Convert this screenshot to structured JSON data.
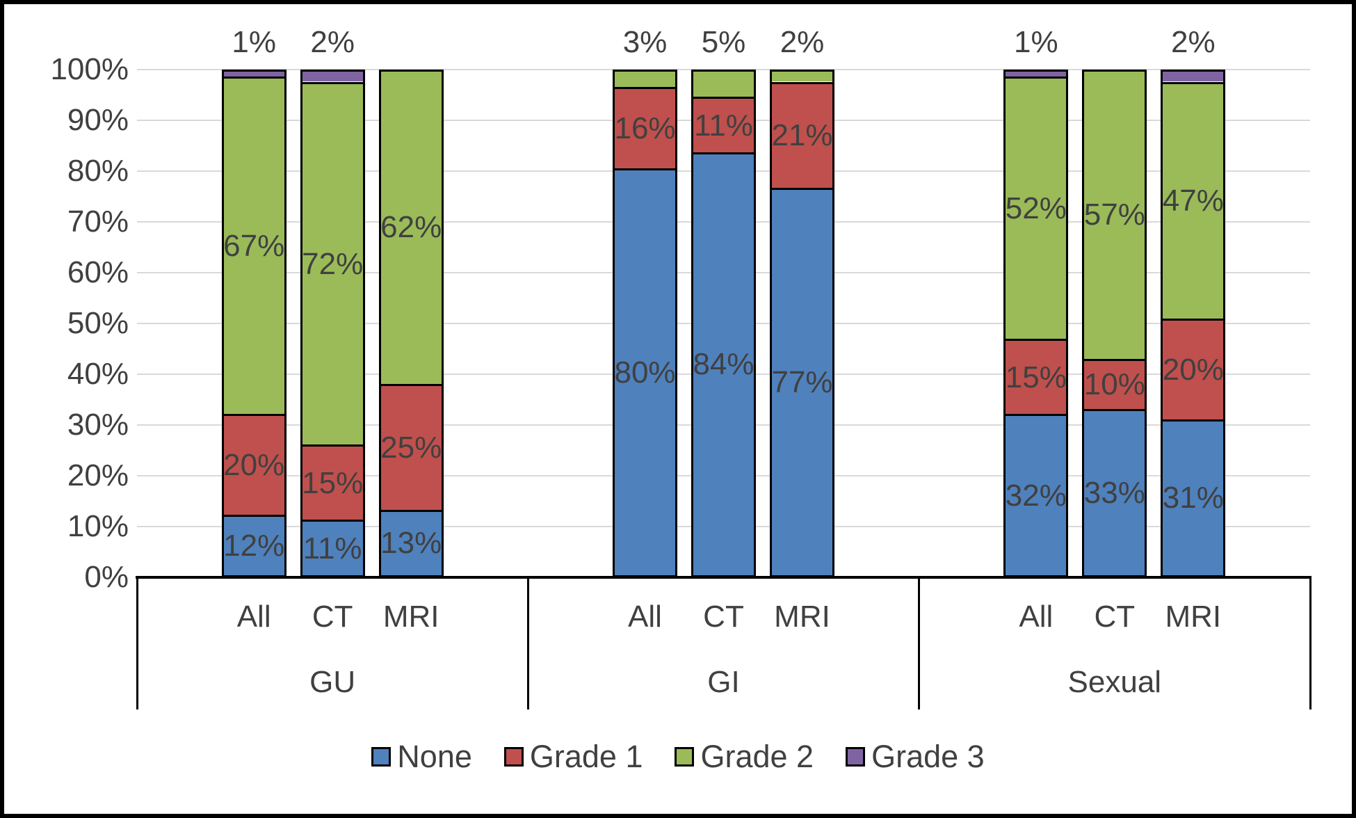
{
  "colors": {
    "series": [
      "#4F81BD",
      "#C0504D",
      "#9BBB59",
      "#8064A2"
    ],
    "text": "#404040",
    "gridline": "#D9D9D9",
    "axis_line": "#000000",
    "background": "#FFFFFF",
    "outer_border": "#000000"
  },
  "legend": {
    "items": [
      {
        "label": "None"
      },
      {
        "label": "Grade 1"
      },
      {
        "label": "Grade 2"
      },
      {
        "label": "Grade 3"
      }
    ]
  },
  "y_axis": {
    "min": 0,
    "max": 100,
    "step": 10,
    "tick_labels": [
      "0%",
      "10%",
      "20%",
      "30%",
      "40%",
      "50%",
      "60%",
      "70%",
      "80%",
      "90%",
      "100%"
    ]
  },
  "chart_data": {
    "type": "bar",
    "stacked": true,
    "unit": "percent",
    "grid": true,
    "legend_position": "bottom",
    "series_names": [
      "None",
      "Grade 1",
      "Grade 2",
      "Grade 3"
    ],
    "groups": [
      {
        "label": "GU",
        "bars": [
          {
            "label": "All",
            "values": [
              12,
              20,
              67,
              1
            ],
            "segment_labels": [
              "12%",
              "20%",
              "67%",
              ""
            ],
            "top_label": "1%"
          },
          {
            "label": "CT",
            "values": [
              11,
              15,
              72,
              2
            ],
            "segment_labels": [
              "11%",
              "15%",
              "72%",
              ""
            ],
            "top_label": "2%"
          },
          {
            "label": "MRI",
            "values": [
              13,
              25,
              62,
              0
            ],
            "segment_labels": [
              "13%",
              "25%",
              "62%",
              ""
            ],
            "top_label": ""
          }
        ]
      },
      {
        "label": "GI",
        "bars": [
          {
            "label": "All",
            "values": [
              80,
              16,
              3,
              0
            ],
            "segment_labels": [
              "80%",
              "16%",
              "",
              ""
            ],
            "top_label": "3%"
          },
          {
            "label": "CT",
            "values": [
              84,
              11,
              5,
              0
            ],
            "segment_labels": [
              "84%",
              "11%",
              "",
              ""
            ],
            "top_label": "5%"
          },
          {
            "label": "MRI",
            "values": [
              77,
              21,
              2,
              0
            ],
            "segment_labels": [
              "77%",
              "21%",
              "",
              ""
            ],
            "top_label": "2%"
          }
        ]
      },
      {
        "label": "Sexual",
        "bars": [
          {
            "label": "All",
            "values": [
              32,
              15,
              52,
              1
            ],
            "segment_labels": [
              "32%",
              "15%",
              "52%",
              ""
            ],
            "top_label": "1%"
          },
          {
            "label": "CT",
            "values": [
              33,
              10,
              57,
              0
            ],
            "segment_labels": [
              "33%",
              "10%",
              "57%",
              ""
            ],
            "top_label": ""
          },
          {
            "label": "MRI",
            "values": [
              31,
              20,
              47,
              2
            ],
            "segment_labels": [
              "31%",
              "20%",
              "47%",
              ""
            ],
            "top_label": "2%"
          }
        ]
      }
    ]
  }
}
